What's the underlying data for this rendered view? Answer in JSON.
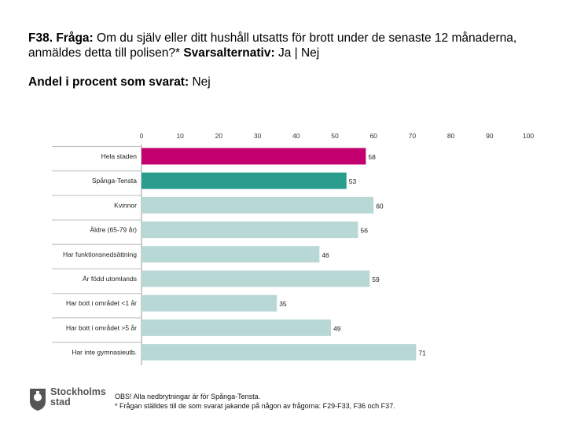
{
  "title": {
    "prefix": "F38. Fråga:",
    "question": " Om du själv eller ditt hushåll utsatts för brott under de senaste 12 månaderna, anmäldes detta till polisen?*",
    "alt_label": " Svarsalternativ:",
    "alt_value": " Ja | Nej"
  },
  "subtitle": {
    "label": "Andel i procent som svarat:",
    "value": " Nej"
  },
  "colors": {
    "highlight": "#c2006e",
    "teal": "#2a9d8f",
    "light": "#b8d8d6",
    "axis": "#999999"
  },
  "chart_data": {
    "type": "bar",
    "orientation": "horizontal",
    "title": "Andel i procent som svarat: Nej",
    "xlim": [
      0,
      100
    ],
    "xticks": [
      "0",
      "10",
      "20",
      "30",
      "40",
      "50",
      "60",
      "70",
      "80",
      "90",
      "100"
    ],
    "categories": [
      "Hela staden",
      "Spånga-Tensta",
      "Kvinnor",
      "Äldre (65-79 år)",
      "Har funktionsnedsättning",
      "Är född utomlands",
      "Har bott i området <1 år",
      "Har bott i området >5 år",
      "Har inte gymnasieutb."
    ],
    "values": [
      58,
      53,
      60,
      56,
      46,
      59,
      35,
      49,
      71
    ],
    "value_labels": [
      "58",
      "53",
      "60",
      "56",
      "46",
      "59",
      "35",
      "49",
      "71"
    ],
    "bar_colors": [
      "#c2006e",
      "#2a9d8f",
      "#b8d8d6",
      "#b8d8d6",
      "#b8d8d6",
      "#b8d8d6",
      "#b8d8d6",
      "#b8d8d6",
      "#b8d8d6"
    ]
  },
  "logo": {
    "line1": "Stockholms",
    "line2": "stad"
  },
  "notes": {
    "line1": "OBS! Alla nedbrytningar är för Spånga-Tensta.",
    "line2": "* Frågan ställdes till de som svarat jakande på någon av frågorna: F29-F33, F36 och F37."
  }
}
